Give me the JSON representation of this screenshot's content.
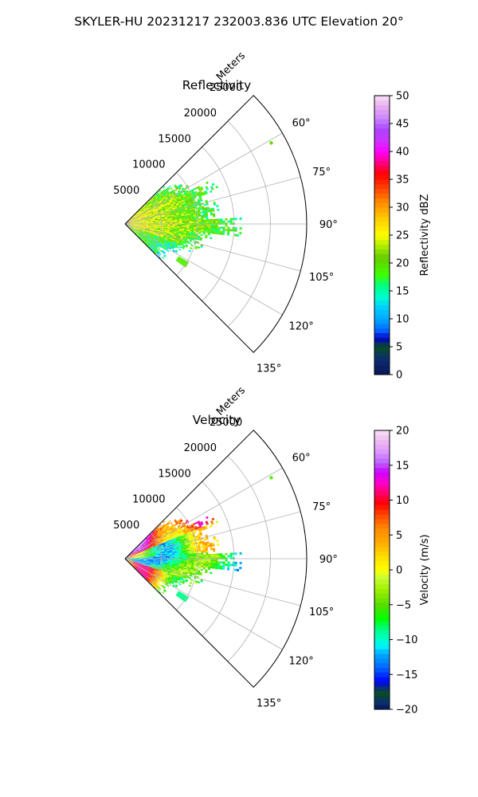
{
  "figure_title": "SKYLER-HU  20231217  232003.836 UTC Elevation 20°",
  "chart_data": [
    {
      "type": "polar-sector",
      "title": "Reflectivity",
      "radial_label": "Meters",
      "radial_ticks": [
        5000,
        10000,
        15000,
        20000,
        25000
      ],
      "radial_tick_labels": [
        "5000",
        "10000",
        "15000",
        "20000",
        "25000"
      ],
      "rmax": 25000,
      "theta_range_deg": [
        45,
        135
      ],
      "theta_ticks_deg": [
        60,
        75,
        90,
        105,
        120,
        135
      ],
      "theta_tick_labels": [
        "60°",
        "75°",
        "90°",
        "105°",
        "120°",
        "135°"
      ],
      "grid": true,
      "field": "reflectivity",
      "colorbar": {
        "label": "Reflectivity dBZ",
        "min": 0,
        "max": 50,
        "ticks": [
          0,
          5,
          10,
          15,
          20,
          25,
          30,
          35,
          40,
          45,
          50
        ],
        "tick_labels": [
          "0",
          "5",
          "10",
          "15",
          "20",
          "25",
          "30",
          "35",
          "40",
          "45",
          "50"
        ]
      }
    },
    {
      "type": "polar-sector",
      "title": "Velocity",
      "radial_label": "Meters",
      "radial_ticks": [
        5000,
        10000,
        15000,
        20000,
        25000
      ],
      "radial_tick_labels": [
        "5000",
        "10000",
        "15000",
        "20000",
        "25000"
      ],
      "rmax": 25000,
      "theta_range_deg": [
        45,
        135
      ],
      "theta_ticks_deg": [
        60,
        75,
        90,
        105,
        120,
        135
      ],
      "theta_tick_labels": [
        "60°",
        "75°",
        "90°",
        "105°",
        "120°",
        "135°"
      ],
      "grid": true,
      "field": "velocity",
      "colorbar": {
        "label": "Velocity (m/s)",
        "min": -20,
        "max": 20,
        "ticks": [
          -20,
          -15,
          -10,
          -5,
          0,
          5,
          10,
          15,
          20
        ],
        "tick_labels": [
          "−20",
          "−15",
          "−10",
          "−5",
          "0",
          "5",
          "10",
          "15",
          "20"
        ]
      }
    }
  ]
}
